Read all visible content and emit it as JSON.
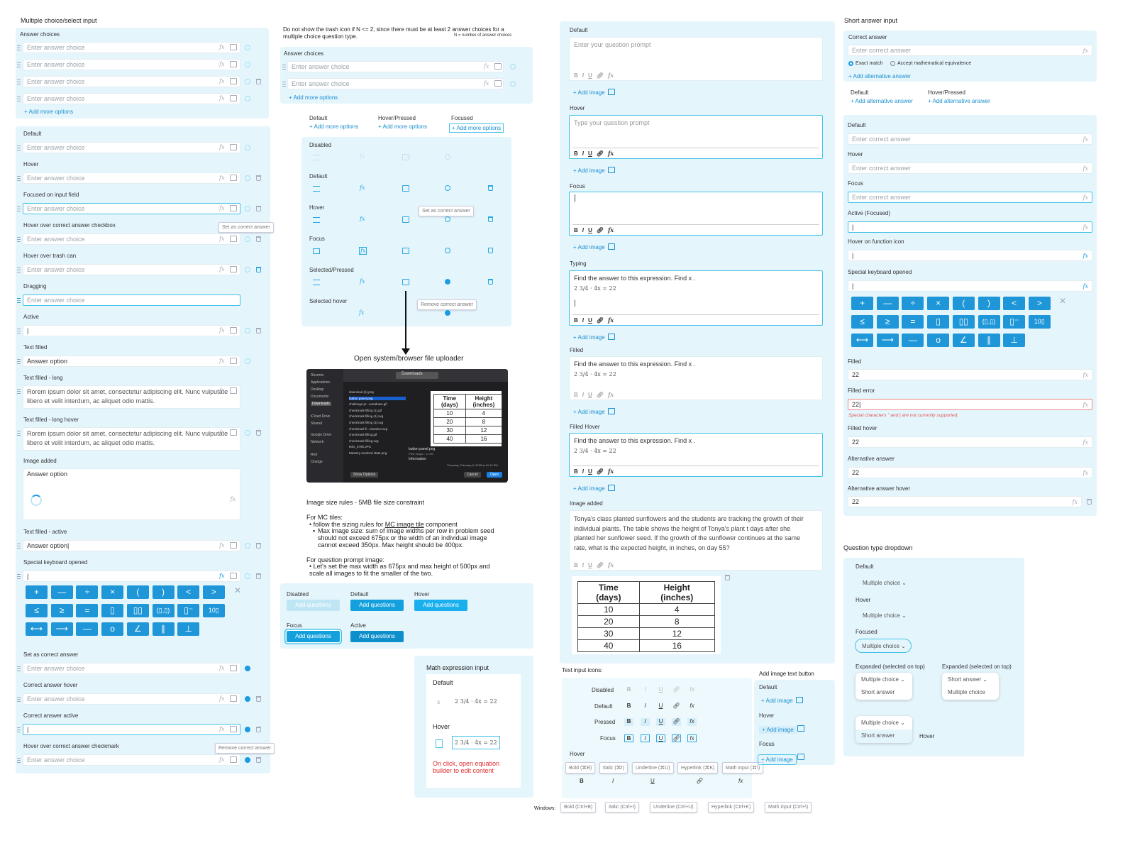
{
  "col1": {
    "title": "Multiple choice/select input",
    "answer_choices_label": "Answer choices",
    "placeholder": "Enter answer choice",
    "add_more": "+ Add more options",
    "states": {
      "default": "Default",
      "hover": "Hover",
      "focused": "Focused on input field",
      "hover_checkbox": "Hover over correct answer checkbox",
      "hover_trash": "Hover over trash can",
      "dragging": "Dragging",
      "active": "Active",
      "text_filled": "Text filled",
      "text_filled_long": "Text filled - long",
      "text_filled_long_hover": "Text filled - long hover",
      "image_added": "Image added",
      "text_filled_active": "Text filled - active",
      "special_keyboard": "Special keyboard opened",
      "set_correct": "Set as correct answer",
      "correct_hover": "Correct answer hover",
      "correct_active": "Correct answer active",
      "hover_checkmark": "Hover over correct answer checkmark"
    },
    "answer_option": "Answer option",
    "answer_option_caret": "Answer option|",
    "long_text": "Rorem ipsum dolor sit amet, consectetur adipiscing elit. Nunc vulputate libero et velit interdum, ac aliquet odio mattis.",
    "tip_set_correct": "Set as correct answer",
    "tip_remove_correct": "Remove correct answer",
    "cursor": "|"
  },
  "keyboard": [
    "+",
    "—",
    "÷",
    "×",
    "(",
    ")",
    "<",
    ">",
    "≤",
    "≥",
    "=",
    "▯",
    "▯▯",
    "(▯,▯)",
    "▯⁻",
    "10▯",
    "⟷",
    "⟶",
    "—",
    "o",
    "∠",
    "∥",
    "⊥"
  ],
  "col2": {
    "note": "Do not show the trash icon if N <= 2, since there must be at least 2 answer choices for a multiple choice question type.",
    "note_small": "N = number of answer choices",
    "answer_choices_label": "Answer choices",
    "placeholder": "Enter answer choice",
    "add_more": "+ Add more options",
    "link_states": [
      "Default",
      "Hover/Pressed",
      "Focused"
    ],
    "icon_states": [
      "Disabled",
      "Default",
      "Hover",
      "Focus",
      "Selected/Pressed",
      "Selected hover"
    ],
    "tip_set_correct": "Set as correct answer",
    "tip_remove_correct": "Remove correct answer",
    "uploader_label": "Open system/browser file uploader",
    "uploader": {
      "sidebar": [
        "Recents",
        "Applications",
        "Desktop",
        "Documents",
        "Downloads",
        "iCloud Drive",
        "Shared",
        "Google Drive",
        "Network",
        "Red",
        "Orange"
      ],
      "folder": "Downloads",
      "files": [
        "download (1).png",
        "button panel.png",
        "challenge pr...ountdown.gif",
        "checkmark filling (1).gif",
        "checkmark filling (1).svg",
        "checkmark filling (3).svg",
        "checkmark fi...nimation.svg",
        "checkmark filling.gif",
        "checkmark filling.svg",
        "IMG_6790.JPG",
        "Mastery reached state.png"
      ],
      "preview_name": "button panel.png",
      "preview_meta": "PNG image - 11 KB",
      "info": "Information",
      "created": "Thursday, February 6, 2025 at 10:19 PM",
      "show_options": "Show Options",
      "cancel": "Cancel",
      "open": "Open"
    },
    "table": {
      "headers": [
        "Time (days)",
        "Height (inches)"
      ],
      "rows": [
        [
          "10",
          "4"
        ],
        [
          "20",
          "8"
        ],
        [
          "30",
          "12"
        ],
        [
          "40",
          "16"
        ]
      ]
    },
    "rules_title": "Image size rules - 5MB file size constraint",
    "mc_tiles": "For MC tiles:",
    "rule1_pre": "follow the sizing rules for ",
    "rule1_link": "MC image tile",
    "rule1_post": " component",
    "rule2": "Max image size: sum of image widths per row in problem seed should not exceed 675px or the width of an individual image cannot exceed 350px. Max height should be 400px.",
    "prompt_image": "For question prompt image:",
    "rule3": "Let's set the max width as 675px and max height of 500px and scale all images to fit the smaller of the two.",
    "btn_states": [
      "Disabled",
      "Default",
      "Hover",
      "Focus",
      "Active"
    ],
    "add_questions": "Add questions"
  },
  "math": {
    "title": "Math expression input",
    "default": "Default",
    "hover": "Hover",
    "expr": "2 3/4 · 4x = 22",
    "note": "On click, open equation builder to edit content"
  },
  "col3": {
    "states": [
      "Default",
      "Hover",
      "Focus",
      "Typing",
      "Filled",
      "Filled Hover",
      "Image added"
    ],
    "placeholder_default": "Enter your question prompt",
    "placeholder_hover": "Type your question prompt",
    "add_image": "+ Add image",
    "typing_text": "Find the answer to this expression. Find x .",
    "expr": "2 3/4 · 4x = 22",
    "paragraph": "Tonya's class planted sunflowers and the students are tracking the growth of their individual plants. The table shows the height of Tonya's plant t days after she planted her sunflower seed. If the growth of the sunflower continues at the same rate, what is the expected height, in inches, on day 55?",
    "table": {
      "headers": [
        "Time (days)",
        "Height (inches)"
      ],
      "rows": [
        [
          "10",
          "4"
        ],
        [
          "20",
          "8"
        ],
        [
          "30",
          "12"
        ],
        [
          "40",
          "16"
        ]
      ]
    },
    "text_icons_title": "Text input icons:",
    "icon_rows": [
      "Disabled",
      "Default",
      "Pressed",
      "Focus"
    ],
    "hover_label": "Hover",
    "hover_tips": [
      "Bold (⌘B)",
      "Italic (⌘I)",
      "Underline (⌘U)",
      "Hyperlink (⌘K)",
      "Math input (⌘\\)"
    ],
    "windows_label": "Windows:",
    "windows_tips": [
      "Bold (Ctrl+B)",
      "Italic (Ctrl+I)",
      "Underline (Ctrl+U)",
      "Hyperlink (Ctrl+K)",
      "Math input (Ctrl+\\)"
    ],
    "add_image_title": "Add image text button",
    "add_image_states": [
      "Default",
      "Hover",
      "Focus"
    ]
  },
  "col4": {
    "title": "Short answer input",
    "correct_answer": "Correct answer",
    "placeholder": "Enter correct answer",
    "exact": "Exact match",
    "equivalence": "Accept mathematical equivalence",
    "add_alt": "+ Add alternative answer",
    "alt_states": [
      "Default",
      "Hover/Pressed"
    ],
    "states": [
      "Default",
      "Hover",
      "Focus",
      "Active (Focused)",
      "Hover on function icon",
      "Special keyboard opened",
      "Filled",
      "Filled error",
      "Filled hover",
      "Alternative answer",
      "Alternative answer hover"
    ],
    "value": "22",
    "value_caret": "22|",
    "error": "Special characters \" and | are not currently supported.",
    "dropdown_title": "Question type dropdown",
    "dd_states": [
      "Default",
      "Hover",
      "Focused"
    ],
    "expanded_left": "Expanded (selected on top)",
    "expanded_right": "Expanded (selected on top)",
    "mc": "Multiple choice",
    "sa": "Short answer",
    "hover": "Hover"
  }
}
